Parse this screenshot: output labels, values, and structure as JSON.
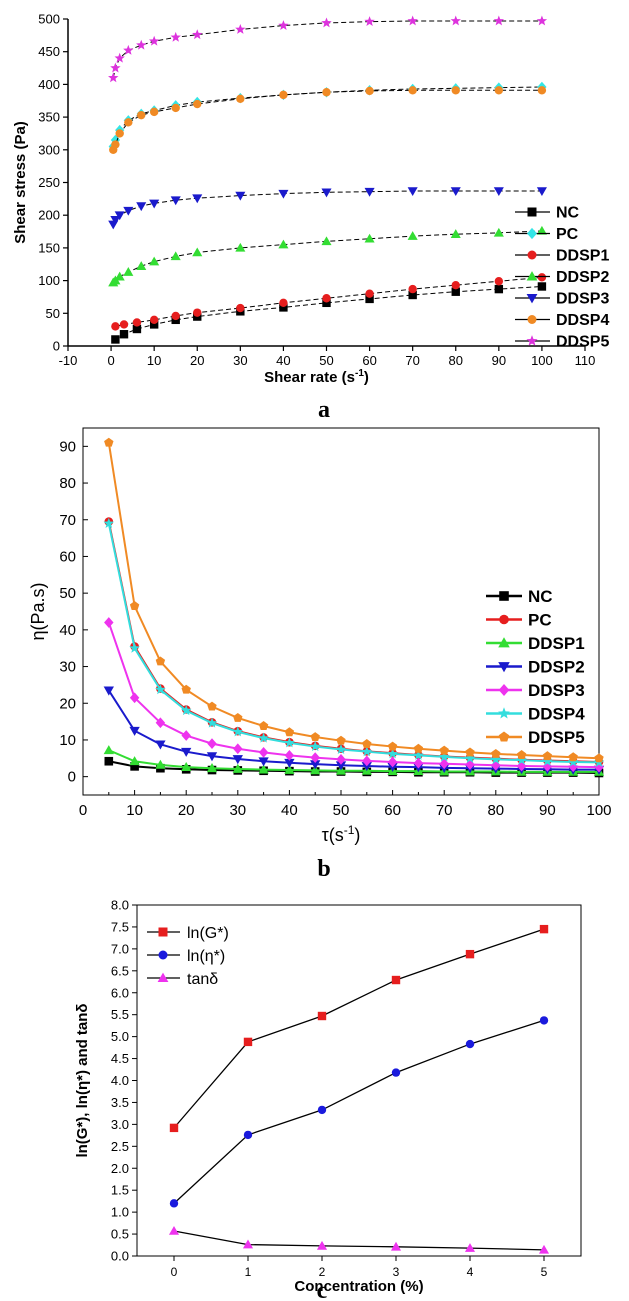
{
  "chart_data": [
    {
      "panel_label": "a",
      "type": "scatter",
      "xlabel": "Shear rate (s",
      "xlabel_sup": "-1",
      "xlabel_close": ")",
      "ylabel": "Shear stress (Pa)",
      "xlim": [
        -10,
        110
      ],
      "ylim": [
        0,
        500
      ],
      "xticks": [
        -10,
        0,
        10,
        20,
        30,
        40,
        50,
        60,
        70,
        80,
        90,
        100,
        110
      ],
      "yticks": [
        0,
        50,
        100,
        150,
        200,
        250,
        300,
        350,
        400,
        450,
        500
      ],
      "legend_position": "right",
      "series": [
        {
          "name": "NC",
          "color": "#000000",
          "marker": "square",
          "x": [
            1,
            3,
            6,
            10,
            15,
            20,
            30,
            40,
            50,
            60,
            70,
            80,
            90,
            100
          ],
          "y": [
            10,
            18,
            26,
            33,
            40,
            45,
            53,
            59,
            66,
            72,
            78,
            83,
            87,
            91
          ]
        },
        {
          "name": "PC",
          "color": "#33e6e6",
          "marker": "diamond",
          "x": [
            0.5,
            1,
            2,
            4,
            7,
            10,
            15,
            20,
            30,
            40,
            50,
            60,
            70,
            80,
            90,
            100
          ],
          "y": [
            305,
            315,
            330,
            345,
            355,
            360,
            368,
            373,
            379,
            384,
            388,
            391,
            393,
            394,
            395,
            396
          ]
        },
        {
          "name": "DDSP1",
          "color": "#e61e1e",
          "marker": "circle",
          "x": [
            1,
            3,
            6,
            10,
            15,
            20,
            30,
            40,
            50,
            60,
            70,
            80,
            90,
            100
          ],
          "y": [
            30,
            33,
            36,
            40,
            46,
            51,
            58,
            66,
            73,
            80,
            87,
            93,
            99,
            105
          ]
        },
        {
          "name": "DDSP2",
          "color": "#33dd33",
          "marker": "triangle-up",
          "x": [
            0.5,
            1,
            2,
            4,
            7,
            10,
            15,
            20,
            30,
            40,
            50,
            60,
            70,
            80,
            90,
            100
          ],
          "y": [
            97,
            100,
            106,
            113,
            122,
            129,
            137,
            143,
            150,
            155,
            160,
            164,
            168,
            171,
            173,
            176
          ]
        },
        {
          "name": "DDSP3",
          "color": "#1a1acc",
          "marker": "triangle-down",
          "x": [
            0.5,
            1,
            2,
            4,
            7,
            10,
            15,
            20,
            30,
            40,
            50,
            60,
            70,
            80,
            90,
            100
          ],
          "y": [
            186,
            193,
            200,
            207,
            214,
            218,
            223,
            226,
            230,
            233,
            235,
            236,
            237,
            237,
            237,
            237
          ]
        },
        {
          "name": "DDSP4",
          "color": "#f08a24",
          "marker": "circle",
          "x": [
            0.5,
            1,
            2,
            4,
            7,
            10,
            15,
            20,
            30,
            40,
            50,
            60,
            70,
            80,
            90,
            100
          ],
          "y": [
            300,
            308,
            325,
            342,
            353,
            358,
            364,
            370,
            378,
            384,
            388,
            390,
            391,
            391,
            391,
            391
          ]
        },
        {
          "name": "DDSP5",
          "color": "#dd33dd",
          "marker": "star",
          "x": [
            0.5,
            1,
            2,
            4,
            7,
            10,
            15,
            20,
            30,
            40,
            50,
            60,
            70,
            80,
            90,
            100
          ],
          "y": [
            410,
            425,
            440,
            452,
            460,
            466,
            472,
            476,
            484,
            490,
            494,
            496,
            497,
            497,
            497,
            497
          ]
        }
      ]
    },
    {
      "panel_label": "b",
      "type": "line",
      "xlabel": "τ(s",
      "xlabel_sup": "-1",
      "xlabel_close": ")",
      "ylabel": "η(Pa.s)",
      "xlim": [
        0,
        100
      ],
      "ylim": [
        -5,
        95
      ],
      "xticks": [
        0,
        10,
        20,
        30,
        40,
        50,
        60,
        70,
        80,
        90,
        100
      ],
      "yticks": [
        0,
        10,
        20,
        30,
        40,
        50,
        60,
        70,
        80,
        90
      ],
      "legend_position": "right",
      "x": [
        5,
        10,
        15,
        20,
        25,
        30,
        35,
        40,
        45,
        50,
        55,
        60,
        65,
        70,
        75,
        80,
        85,
        90,
        95,
        100
      ],
      "series": [
        {
          "name": "NC",
          "color": "#000000",
          "marker": "square",
          "values": [
            4.2,
            2.8,
            2.3,
            2.0,
            1.8,
            1.7,
            1.6,
            1.5,
            1.4,
            1.4,
            1.3,
            1.3,
            1.2,
            1.2,
            1.2,
            1.1,
            1.1,
            1.1,
            1.1,
            1.0
          ]
        },
        {
          "name": "PC",
          "color": "#e61e1e",
          "marker": "circle",
          "values": [
            69.5,
            35.5,
            24.0,
            18.3,
            14.8,
            12.4,
            10.7,
            9.4,
            8.4,
            7.6,
            6.9,
            6.4,
            5.9,
            5.5,
            5.2,
            4.9,
            4.6,
            4.4,
            4.2,
            4.0
          ]
        },
        {
          "name": "DDSP1",
          "color": "#33dd33",
          "marker": "triangle-up",
          "values": [
            7.2,
            4.2,
            3.2,
            2.6,
            2.3,
            2.1,
            1.9,
            1.8,
            1.7,
            1.6,
            1.6,
            1.5,
            1.5,
            1.4,
            1.4,
            1.4,
            1.3,
            1.3,
            1.3,
            1.3
          ]
        },
        {
          "name": "DDSP2",
          "color": "#1a1acc",
          "marker": "triangle-down",
          "values": [
            23.5,
            12.5,
            8.8,
            6.8,
            5.6,
            4.8,
            4.2,
            3.8,
            3.4,
            3.1,
            2.9,
            2.7,
            2.6,
            2.4,
            2.3,
            2.2,
            2.1,
            2.0,
            1.9,
            1.9
          ]
        },
        {
          "name": "DDSP3",
          "color": "#ee33ee",
          "marker": "diamond",
          "values": [
            42.0,
            21.5,
            14.7,
            11.2,
            9.0,
            7.6,
            6.6,
            5.8,
            5.2,
            4.7,
            4.3,
            4.0,
            3.7,
            3.5,
            3.3,
            3.1,
            2.9,
            2.8,
            2.7,
            2.6
          ]
        },
        {
          "name": "DDSP4",
          "color": "#33dddd",
          "marker": "star",
          "values": [
            69.0,
            35.0,
            23.7,
            18.0,
            14.6,
            12.2,
            10.5,
            9.2,
            8.2,
            7.4,
            6.8,
            6.2,
            5.8,
            5.4,
            5.0,
            4.7,
            4.5,
            4.2,
            4.0,
            3.9
          ]
        },
        {
          "name": "DDSP5",
          "color": "#f08a24",
          "marker": "pentagon",
          "values": [
            91.0,
            46.5,
            31.4,
            23.7,
            19.1,
            16.0,
            13.8,
            12.1,
            10.8,
            9.8,
            8.9,
            8.2,
            7.6,
            7.1,
            6.6,
            6.2,
            5.9,
            5.6,
            5.3,
            5.0
          ]
        }
      ]
    },
    {
      "panel_label": "c",
      "type": "line",
      "xlabel": "Concentration (%)",
      "ylabel": "ln(G*), ln(η*) and tanδ",
      "xlim": [
        -0.5,
        5.5
      ],
      "ylim": [
        0,
        8.0
      ],
      "xticks": [
        0,
        1,
        2,
        3,
        4,
        5
      ],
      "yticks": [
        "0.0",
        "0.5",
        "1.0",
        "1.5",
        "2.0",
        "2.5",
        "3.0",
        "3.5",
        "4.0",
        "4.5",
        "5.0",
        "5.5",
        "6.0",
        "6.5",
        "7.0",
        "7.5",
        "8.0"
      ],
      "legend_position": "top-left",
      "x": [
        0,
        1,
        2,
        3,
        4,
        5
      ],
      "series": [
        {
          "name": "ln(G*)",
          "color": "#e61e1e",
          "marker": "square",
          "values": [
            2.92,
            4.88,
            5.47,
            6.29,
            6.88,
            7.45
          ]
        },
        {
          "name": "ln(η*)",
          "color": "#1a1add",
          "marker": "circle",
          "values": [
            1.2,
            2.76,
            3.33,
            4.18,
            4.83,
            5.37
          ]
        },
        {
          "name": "tanδ",
          "color": "#ee33ee",
          "marker": "triangle-up",
          "values": [
            0.57,
            0.26,
            0.23,
            0.21,
            0.18,
            0.14
          ]
        }
      ]
    }
  ]
}
